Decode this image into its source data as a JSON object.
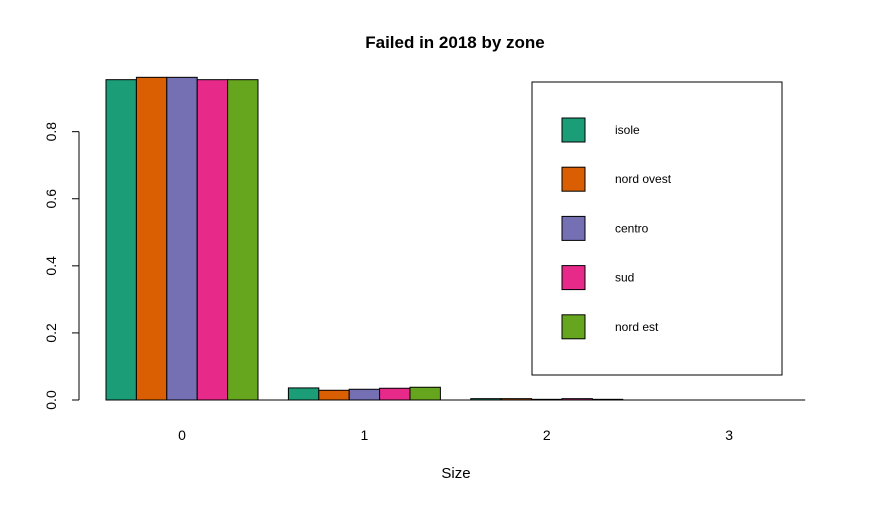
{
  "chart_data": {
    "type": "bar",
    "title": "Failed in 2018 by zone",
    "xlabel": "Size",
    "ylabel": "",
    "categories": [
      "0",
      "1",
      "2",
      "3"
    ],
    "series": [
      {
        "name": "isole",
        "color": "#1b9e77",
        "values": [
          0.955,
          0.036,
          0.004,
          0.0
        ]
      },
      {
        "name": "nord ovest",
        "color": "#d95f02",
        "values": [
          0.962,
          0.029,
          0.004,
          0.0
        ]
      },
      {
        "name": "centro",
        "color": "#7570b3",
        "values": [
          0.962,
          0.032,
          0.002,
          0.0
        ]
      },
      {
        "name": "sud",
        "color": "#e7298a",
        "values": [
          0.955,
          0.035,
          0.004,
          0.0
        ]
      },
      {
        "name": "nord est",
        "color": "#66a61e",
        "values": [
          0.955,
          0.038,
          0.002,
          0.0
        ]
      }
    ],
    "ylim": [
      0,
      0.96
    ],
    "yticks": [
      0.0,
      0.2,
      0.4,
      0.6,
      0.8
    ],
    "ytick_labels": [
      "0.0",
      "0.2",
      "0.4",
      "0.6",
      "0.8"
    ],
    "legend_position": "top-right",
    "grid": false
  }
}
